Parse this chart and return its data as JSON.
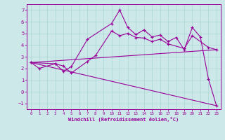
{
  "xlabel": "Windchill (Refroidissement éolien,°C)",
  "background_color": "#cce8e8",
  "line_color": "#990099",
  "xlim": [
    -0.5,
    23.5
  ],
  "ylim": [
    -1.5,
    7.5
  ],
  "xticks": [
    0,
    1,
    2,
    3,
    4,
    5,
    6,
    7,
    8,
    9,
    10,
    11,
    12,
    13,
    14,
    15,
    16,
    17,
    18,
    19,
    20,
    21,
    22,
    23
  ],
  "yticks": [
    -1,
    0,
    1,
    2,
    3,
    4,
    5,
    6,
    7
  ],
  "line1_x": [
    0,
    1,
    3,
    4,
    5,
    7,
    10,
    11,
    12,
    13,
    14,
    15,
    16,
    17,
    18,
    19,
    20,
    21,
    22,
    23
  ],
  "line1_y": [
    2.5,
    2.0,
    2.4,
    1.75,
    2.15,
    4.5,
    5.85,
    7.0,
    5.5,
    4.9,
    5.3,
    4.7,
    4.85,
    4.3,
    4.65,
    3.6,
    5.5,
    4.7,
    1.1,
    -1.2
  ],
  "line2_x": [
    0,
    3,
    4,
    5,
    7,
    8,
    10,
    11,
    12,
    13,
    14,
    15,
    16,
    17,
    19,
    20,
    22,
    23
  ],
  "line2_y": [
    2.5,
    2.4,
    2.2,
    1.6,
    2.6,
    3.1,
    5.2,
    4.8,
    5.0,
    4.65,
    4.6,
    4.3,
    4.5,
    4.1,
    3.7,
    4.8,
    3.8,
    3.6
  ],
  "line3_x": [
    0,
    23
  ],
  "line3_y": [
    2.5,
    3.6
  ],
  "line4_x": [
    0,
    23
  ],
  "line4_y": [
    2.5,
    -1.2
  ],
  "grid_color": "#aad4d4",
  "marker": "+"
}
